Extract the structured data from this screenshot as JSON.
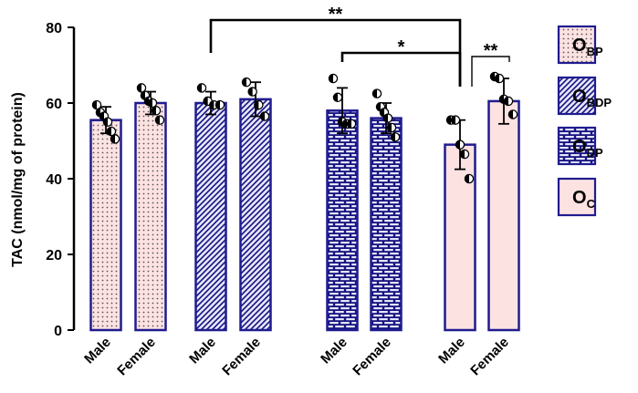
{
  "chart_data": {
    "type": "bar",
    "ylabel": "TAC (nmol/mg of protein)",
    "ylim": [
      0,
      80
    ],
    "yticks": [
      0,
      20,
      40,
      60,
      80
    ],
    "groups": [
      {
        "name": "O",
        "sub": "BP",
        "pattern": "dots"
      },
      {
        "name": "O",
        "sub": "BDP",
        "pattern": "diagonal"
      },
      {
        "name": "O",
        "sub": "DP",
        "pattern": "brick"
      },
      {
        "name": "O",
        "sub": "C",
        "pattern": "solid"
      }
    ],
    "bars": [
      {
        "group": 0,
        "category": "Male",
        "mean": 55.5,
        "sd": 3.5,
        "points": [
          59.5,
          57.5,
          56.5,
          55.0,
          52.5,
          50.5
        ]
      },
      {
        "group": 0,
        "category": "Female",
        "mean": 60.0,
        "sd": 3.0,
        "points": [
          64.0,
          62.0,
          60.5,
          60.0,
          58.0,
          55.5
        ]
      },
      {
        "group": 1,
        "category": "Male",
        "mean": 60.0,
        "sd": 3.0,
        "points": [
          64.0,
          60.5,
          59.5,
          59.5
        ]
      },
      {
        "group": 1,
        "category": "Female",
        "mean": 61.0,
        "sd": 4.5,
        "points": [
          65.5,
          63.0,
          59.5,
          56.5
        ]
      },
      {
        "group": 2,
        "category": "Male",
        "mean": 58.0,
        "sd": 6.0,
        "points": [
          66.5,
          61.5,
          55.0,
          54.5,
          54.5
        ]
      },
      {
        "group": 2,
        "category": "Female",
        "mean": 56.0,
        "sd": 4.0,
        "points": [
          62.5,
          59.0,
          57.5,
          56.0,
          53.5,
          51.0
        ]
      },
      {
        "group": 3,
        "category": "Male",
        "mean": 49.0,
        "sd": 6.5,
        "points": [
          55.5,
          55.5,
          49.0,
          46.5,
          40.0
        ]
      },
      {
        "group": 3,
        "category": "Female",
        "mean": 60.5,
        "sd": 6.0,
        "points": [
          67.0,
          66.5,
          61.0,
          60.5,
          57.0
        ]
      }
    ],
    "significance": [
      {
        "label": "**",
        "from_bar": 2,
        "to_bar": 6
      },
      {
        "label": "*",
        "from_bar": 4,
        "to_bar": 6
      },
      {
        "label": "**",
        "from_bar": 6,
        "to_bar": 7
      }
    ],
    "colors": {
      "axis": "#000000",
      "bar_outline": "#1f1c8f",
      "fill_pink": "#fde2e2",
      "fill_lavender": "#e6e6fb",
      "pattern_dark": "#17137f",
      "legend_border": "#1f1c8f"
    }
  }
}
